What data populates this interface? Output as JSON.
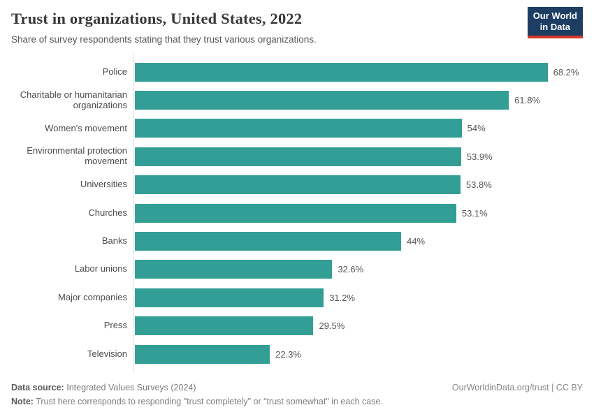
{
  "header": {
    "title": "Trust in organizations, United States, 2022",
    "subtitle": "Share of survey respondents stating that they trust various organizations.",
    "logo": {
      "line1": "Our World",
      "line2": "in Data",
      "bg_color": "#1d3d63",
      "accent_color": "#d5392d"
    }
  },
  "chart_data": {
    "type": "bar",
    "orientation": "horizontal",
    "title": "Trust in organizations, United States, 2022",
    "subtitle": "Share of survey respondents stating that they trust various organizations.",
    "categories": [
      "Police",
      "Charitable or humanitarian organizations",
      "Women's movement",
      "Environmental protection movement",
      "Universities",
      "Churches",
      "Banks",
      "Labor unions",
      "Major companies",
      "Press",
      "Television"
    ],
    "values": [
      68.2,
      61.8,
      54,
      53.9,
      53.8,
      53.1,
      44,
      32.6,
      31.2,
      29.5,
      22.3
    ],
    "value_labels": [
      "68.2%",
      "61.8%",
      "54%",
      "53.9%",
      "53.8%",
      "53.1%",
      "44%",
      "32.6%",
      "31.2%",
      "29.5%",
      "22.3%"
    ],
    "unit": "%",
    "xlim": [
      0,
      70
    ],
    "bar_color": "#339e96",
    "grid": false,
    "legend": "none",
    "value_labels_position": "outside-end"
  },
  "footer": {
    "data_source_label": "Data source:",
    "data_source": "Integrated Values Surveys (2024)",
    "note_label": "Note:",
    "note": "Trust here corresponds to responding \"trust completely\" or \"trust somewhat\" in each case.",
    "link": "OurWorldinData.org/trust | CC BY"
  }
}
